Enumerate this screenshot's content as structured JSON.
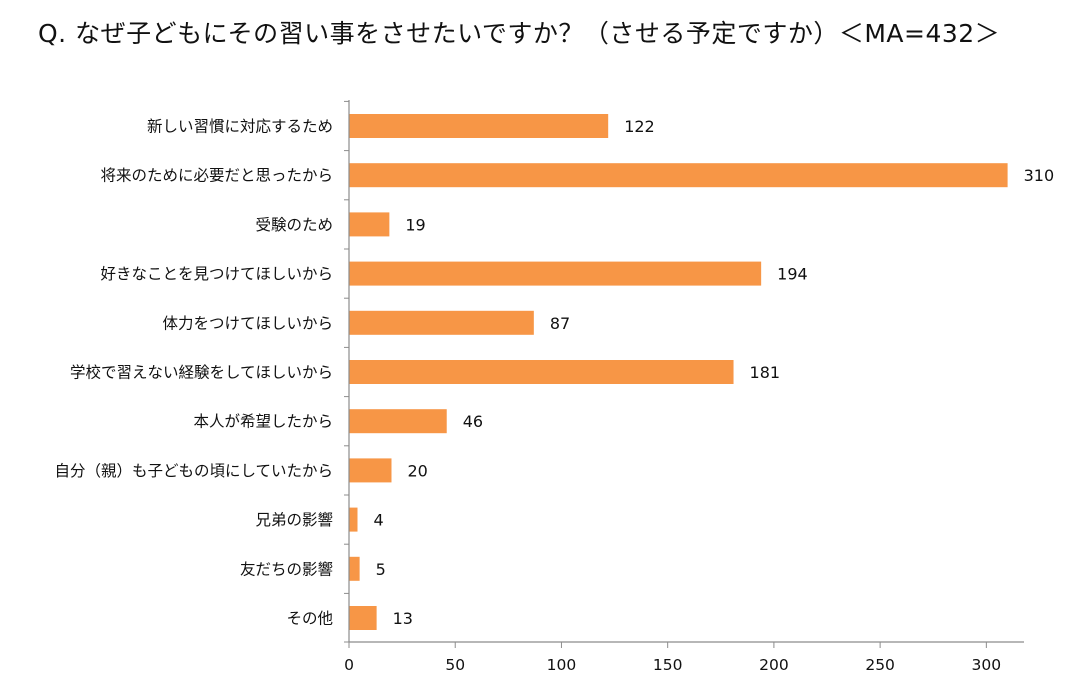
{
  "chart_data": {
    "type": "bar",
    "orientation": "horizontal",
    "title": "Q. なぜ子どもにその習い事をさせたいですか？（させる予定ですか）＜MA=432＞",
    "categories": [
      "新しい習慣に対応するため",
      "将来のために必要だと思ったから",
      "受験のため",
      "好きなことを見つけてほしいから",
      "体力をつけてほしいから",
      "学校で習えない経験をしてほしいから",
      "本人が希望したから",
      "自分（親）も子どもの頃にしていたから",
      "兄弟の影響",
      "友だちの影響",
      "その他"
    ],
    "values": [
      122,
      310,
      19,
      194,
      87,
      181,
      46,
      20,
      4,
      5,
      13
    ],
    "xlim": [
      0,
      320
    ],
    "xticks": [
      "0",
      "50",
      "100",
      "150",
      "200",
      "250",
      "300"
    ],
    "bar_color": "#F79646",
    "grid": false,
    "legend": "none"
  }
}
